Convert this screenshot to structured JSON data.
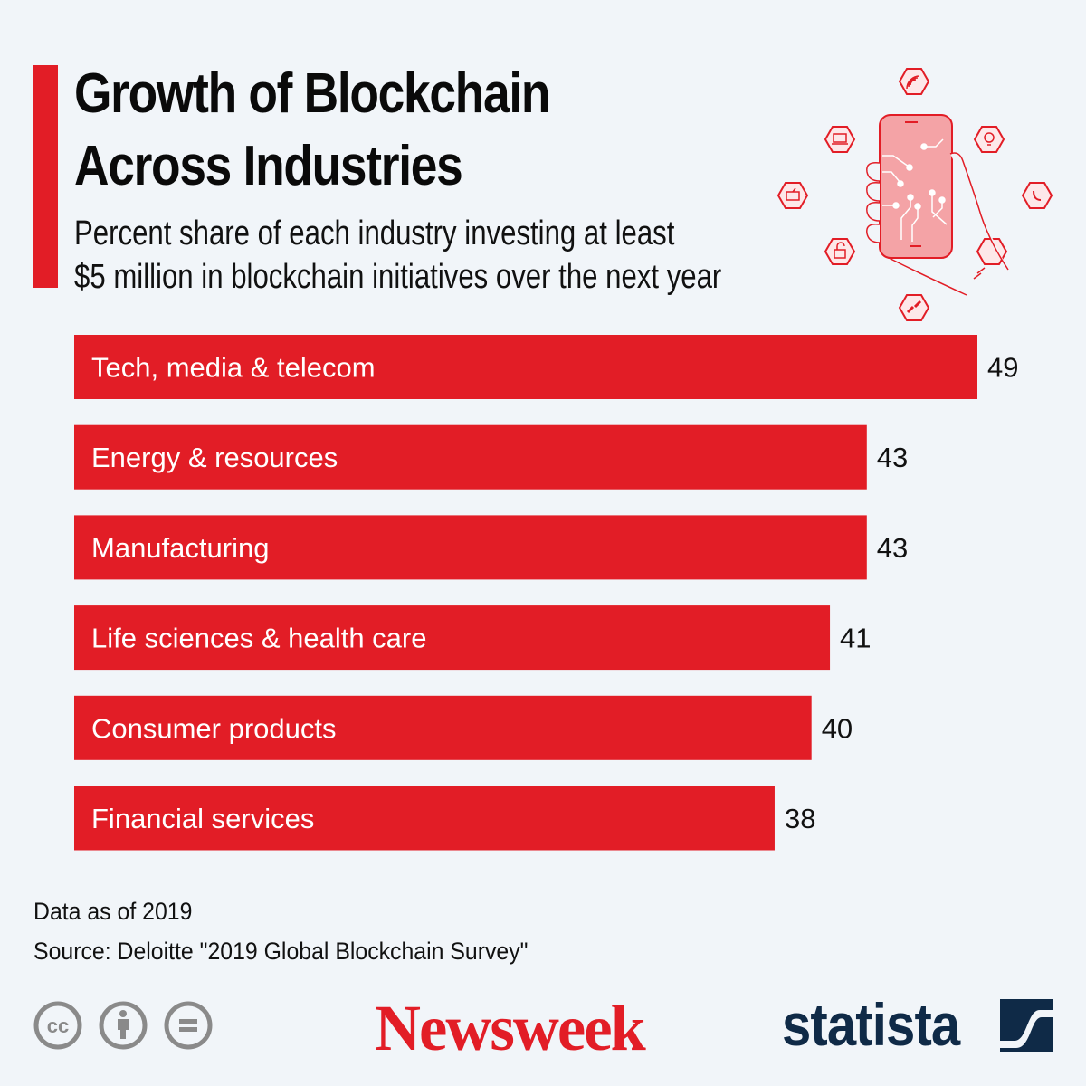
{
  "header": {
    "title_line1": "Growth of Blockchain",
    "title_line2": "Across Industries",
    "subtitle_line1": "Percent share of each industry investing at least",
    "subtitle_line2": "$5 million in blockchain initiatives over the next year"
  },
  "colors": {
    "accent": "#e21d26",
    "background": "#f1f5f9",
    "statista_navy": "#0f2a47",
    "icon_gray": "#8a8a8a"
  },
  "illustration": {
    "name": "hand-holding-phone-circuit-illustration",
    "hex_icons": [
      "wifi-icon",
      "laptop-code-icon",
      "lightbulb-icon",
      "tv-icon",
      "phone-call-icon",
      "unlock-icon",
      "document-icon",
      "chain-link-icon"
    ]
  },
  "chart_data": {
    "type": "bar",
    "orientation": "horizontal",
    "title": "Growth of Blockchain Across Industries",
    "subtitle": "Percent share of each industry investing at least $5 million in blockchain initiatives over the next year",
    "categories": [
      "Tech, media & telecom",
      "Energy & resources",
      "Manufacturing",
      "Life sciences & health care",
      "Consumer products",
      "Financial services"
    ],
    "values": [
      49,
      43,
      43,
      41,
      40,
      38
    ],
    "unit": "%",
    "xlabel": "",
    "ylabel": "",
    "xlim": [
      0,
      49
    ],
    "grid": false,
    "legend": "none",
    "data_labels": true
  },
  "footer": {
    "note": "Data as of 2019",
    "source": "Source: Deloitte \"2019 Global Blockchain Survey\"",
    "license_icons": [
      "creative-commons-icon",
      "attribution-icon",
      "no-derivatives-icon"
    ],
    "cc_text": "cc",
    "newsweek_logo": "Newsweek",
    "statista_logo": "statista"
  }
}
